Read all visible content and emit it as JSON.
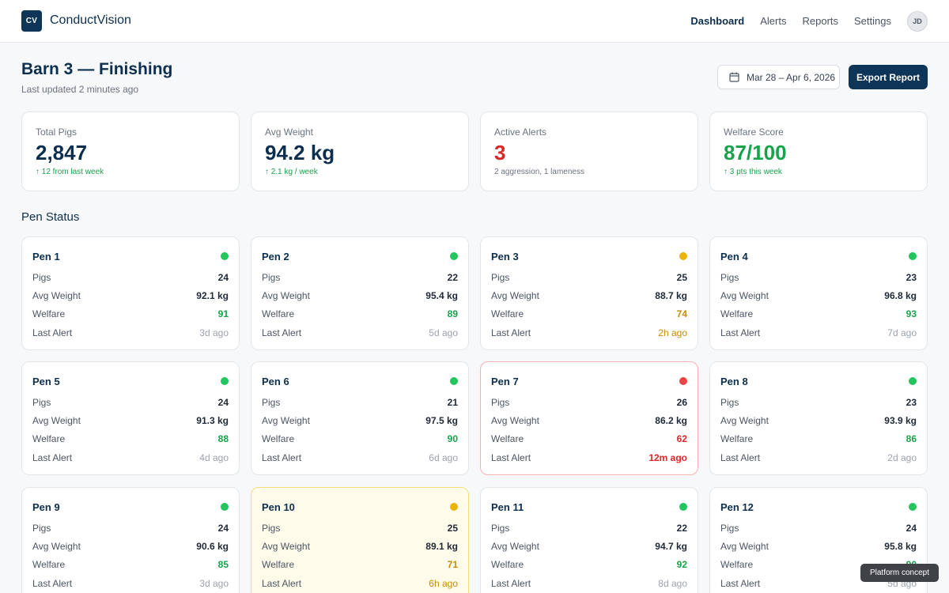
{
  "app": {
    "logo": "CV",
    "brand": "ConductVision"
  },
  "nav": [
    {
      "label": "Dashboard",
      "active": true
    },
    {
      "label": "Alerts",
      "active": false
    },
    {
      "label": "Reports",
      "active": false
    },
    {
      "label": "Settings",
      "active": false
    }
  ],
  "user": {
    "initials": "JD"
  },
  "header": {
    "title": "Barn 3 — Finishing",
    "updated": "Last updated 2 minutes ago"
  },
  "date_range": "Mar 28 – Apr 6, 2026",
  "export_label": "Export Report",
  "stats": [
    {
      "label": "Total Pigs",
      "value": "2,847",
      "sub": "↑ 12 from last week",
      "value_color": "#0c2f4f"
    },
    {
      "label": "Avg Weight",
      "value": "94.2 kg",
      "sub": "↑ 2.1 kg / week",
      "value_color": "#0c2f4f"
    },
    {
      "label": "Active Alerts",
      "value": "3",
      "sub": "2 aggression, 1 lameness",
      "value_color": "#dc2626"
    },
    {
      "label": "Welfare Score",
      "value": "87/100",
      "sub": "↑ 3 pts this week",
      "value_color": "#16a34a"
    }
  ],
  "section_title": "Pen Status",
  "pen_labels": {
    "pigs": "Pigs",
    "weight": "Avg Weight",
    "welfare": "Welfare",
    "alert": "Last Alert"
  },
  "pens": [
    {
      "name": "Pen 1",
      "status": "green",
      "pigs": "24",
      "weight": "92.1 kg",
      "welfare": "91",
      "alert": "3d ago"
    },
    {
      "name": "Pen 2",
      "status": "green",
      "pigs": "22",
      "weight": "95.4 kg",
      "welfare": "89",
      "alert": "5d ago"
    },
    {
      "name": "Pen 3",
      "status": "amber",
      "pigs": "25",
      "weight": "88.7 kg",
      "welfare": "74",
      "alert": "2h ago"
    },
    {
      "name": "Pen 4",
      "status": "green",
      "pigs": "23",
      "weight": "96.8 kg",
      "welfare": "93",
      "alert": "7d ago"
    },
    {
      "name": "Pen 5",
      "status": "green",
      "pigs": "24",
      "weight": "91.3 kg",
      "welfare": "88",
      "alert": "4d ago"
    },
    {
      "name": "Pen 6",
      "status": "green",
      "pigs": "21",
      "weight": "97.5 kg",
      "welfare": "90",
      "alert": "6d ago"
    },
    {
      "name": "Pen 7",
      "status": "red",
      "pigs": "26",
      "weight": "86.2 kg",
      "welfare": "62",
      "alert": "12m ago"
    },
    {
      "name": "Pen 8",
      "status": "green",
      "pigs": "23",
      "weight": "93.9 kg",
      "welfare": "86",
      "alert": "2d ago"
    },
    {
      "name": "Pen 9",
      "status": "green",
      "pigs": "24",
      "weight": "90.6 kg",
      "welfare": "85",
      "alert": "3d ago"
    },
    {
      "name": "Pen 10",
      "status": "amber",
      "pigs": "25",
      "weight": "89.1 kg",
      "welfare": "71",
      "alert": "6h ago"
    },
    {
      "name": "Pen 11",
      "status": "green",
      "pigs": "22",
      "weight": "94.7 kg",
      "welfare": "92",
      "alert": "8d ago"
    },
    {
      "name": "Pen 12",
      "status": "green",
      "pigs": "24",
      "weight": "95.8 kg",
      "welfare": "90",
      "alert": "5d ago"
    }
  ],
  "tooltip": "Platform concept"
}
